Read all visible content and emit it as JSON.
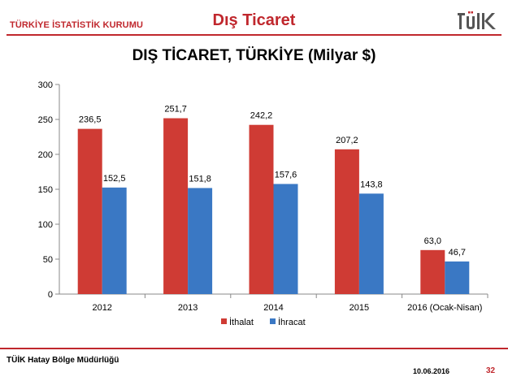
{
  "header": {
    "organization": "TÜRKİYE İSTATİSTİK KURUMU",
    "title": "Dış Ticaret",
    "logo_text": "TÜİK"
  },
  "colors": {
    "brand": "#c0272d",
    "imports": "#cf3b34",
    "exports": "#3a78c4"
  },
  "chart_data": {
    "type": "bar",
    "title": "DIŞ TİCARET, TÜRKİYE (Milyar $)",
    "categories": [
      "2012",
      "2013",
      "2014",
      "2015",
      "2016 (Ocak-Nisan)"
    ],
    "series": [
      {
        "name": "İthalat",
        "values": [
          236.5,
          251.7,
          242.2,
          207.2,
          63.0
        ],
        "labels": [
          "236,5",
          "251,7",
          "242,2",
          "207,2",
          "63,0"
        ],
        "color": "#cf3b34"
      },
      {
        "name": "İhracat",
        "values": [
          152.5,
          151.8,
          157.6,
          143.8,
          46.7
        ],
        "labels": [
          "152,5",
          "151,8",
          "157,6",
          "143,8",
          "46,7"
        ],
        "color": "#3a78c4"
      }
    ],
    "ylim": [
      0,
      300
    ],
    "yticks": [
      0,
      50,
      100,
      150,
      200,
      250,
      300
    ],
    "grid": false,
    "legend_position": "bottom"
  },
  "footer": {
    "office": "TÜİK Hatay Bölge Müdürlüğü",
    "date": "10.06.2016",
    "page": "32"
  }
}
